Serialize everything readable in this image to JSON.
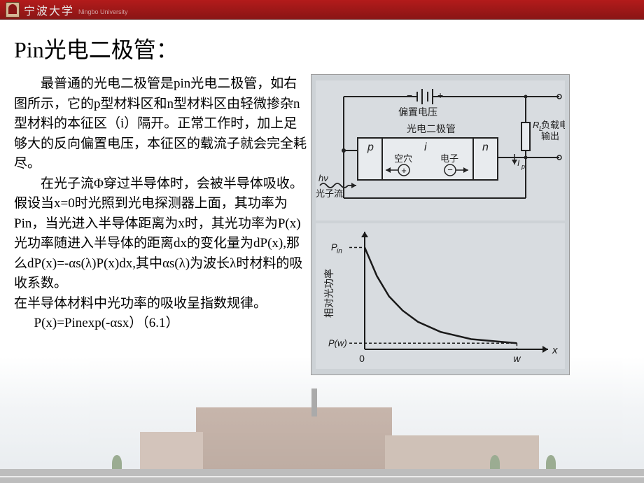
{
  "header": {
    "university_name": "宁波大学",
    "university_en": "Ningbo University"
  },
  "slide": {
    "title": "Pin光电二极管：",
    "para1": "最普通的光电二极管是pin光电二极管，如右图所示，它的p型材料区和n型材料区由轻微掺杂n型材料的本征区（i）隔开。正常工作时，加上足够大的反向偏置电压，本征区的载流子就会完全耗尽。",
    "para2": "在光子流Φ穿过半导体时，会被半导体吸收。假设当x=0时光照到光电探测器上面，其功率为Pin，当光进入半导体距离为x时，其光功率为P(x)光功率随进入半导体的距离dx的变化量为dP(x),那么dP(x)=-αs(λ)P(x)dx,其中αs(λ)为波长λ时材料的吸收系数。",
    "para3": "在半导体材料中光功率的吸收呈指数规律。",
    "formula": "P(x)=Pinexp(-αsx）（6.1）"
  },
  "circuit": {
    "bias_label": "偏置电压",
    "diode_label": "光电二极管",
    "load_label": "负载电阻",
    "output_label": "输出",
    "p_label": "p",
    "i_label": "i",
    "n_label": "n",
    "hole_label": "空穴",
    "electron_label": "电子",
    "photon_label_1": "hν",
    "photon_label_2": "光子流",
    "rl_label": "R_L",
    "ip_label": "I_p",
    "hole_symbol": "+",
    "electron_symbol": "−",
    "colors": {
      "paper": "#d0d5d9",
      "ink": "#2a2a2a",
      "box_fill": "#e2e6e9"
    }
  },
  "graph": {
    "ylabel": "相对光功率",
    "xlabel": "x",
    "pin_label": "P_in",
    "pw_label": "P(w)",
    "origin_label": "0",
    "w_label": "w",
    "curve": {
      "x": [
        0,
        0.08,
        0.16,
        0.25,
        0.35,
        0.5,
        0.7,
        1.0
      ],
      "y": [
        1.0,
        0.72,
        0.52,
        0.38,
        0.27,
        0.17,
        0.1,
        0.06
      ]
    },
    "xlim": [
      0,
      1.15
    ],
    "ylim": [
      0,
      1.1
    ],
    "pin_level": 1.0,
    "pw_level": 0.06,
    "w_x": 1.0,
    "colors": {
      "axis": "#1a1a1a",
      "curve": "#1a1a1a",
      "paper": "#d0d5d9"
    },
    "line_width": 2
  }
}
